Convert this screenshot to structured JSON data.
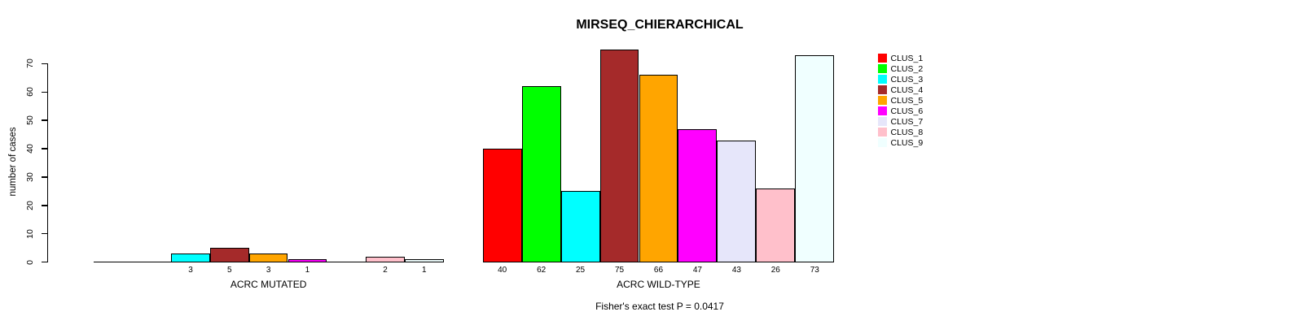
{
  "chart_data": {
    "type": "bar",
    "title": "MIRSEQ_CHIERARCHICAL",
    "ylabel": "number of cases",
    "ylim": [
      0,
      70
    ],
    "yticks": [
      0,
      10,
      20,
      30,
      40,
      50,
      60,
      70
    ],
    "grid": false,
    "legend_position": "right",
    "annotation": "Fisher's exact test P = 0.0417",
    "series": [
      {
        "name": "CLUS_1",
        "color": "#FF0000"
      },
      {
        "name": "CLUS_2",
        "color": "#00FF00"
      },
      {
        "name": "CLUS_3",
        "color": "#00FFFF"
      },
      {
        "name": "CLUS_4",
        "color": "#A52A2A"
      },
      {
        "name": "CLUS_5",
        "color": "#FFA500"
      },
      {
        "name": "CLUS_6",
        "color": "#FF00FF"
      },
      {
        "name": "CLUS_7",
        "color": "#E6E6FA"
      },
      {
        "name": "CLUS_8",
        "color": "#FFC0CB"
      },
      {
        "name": "CLUS_9",
        "color": "#F0FFFF"
      }
    ],
    "groups": [
      {
        "label": "ACRC MUTATED",
        "values": [
          0,
          0,
          3,
          5,
          3,
          1,
          0,
          2,
          1
        ]
      },
      {
        "label": "ACRC WILD-TYPE",
        "values": [
          40,
          62,
          25,
          75,
          66,
          47,
          43,
          26,
          73
        ]
      }
    ]
  }
}
